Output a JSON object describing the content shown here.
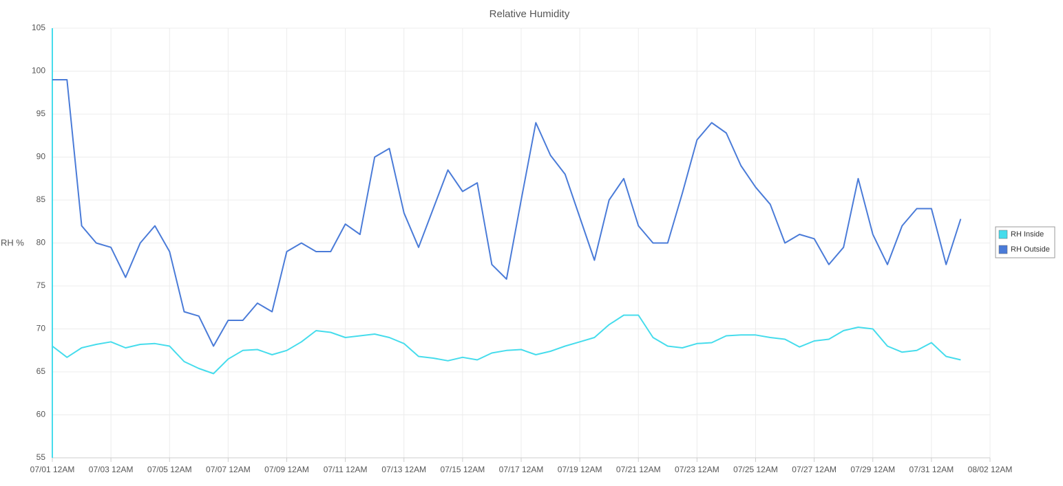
{
  "chart_data": {
    "type": "line",
    "title": "Relative Humidity",
    "y_label": "RH %",
    "x": [
      "07/01 12AM",
      "07/01 12PM",
      "07/02 12AM",
      "07/02 12PM",
      "07/03 12AM",
      "07/03 12PM",
      "07/04 12AM",
      "07/04 12PM",
      "07/05 12AM",
      "07/05 12PM",
      "07/06 12AM",
      "07/06 12PM",
      "07/07 12AM",
      "07/07 12PM",
      "07/08 12AM",
      "07/08 12PM",
      "07/09 12AM",
      "07/09 12PM",
      "07/10 12AM",
      "07/10 12PM",
      "07/11 12AM",
      "07/11 12PM",
      "07/12 12AM",
      "07/12 12PM",
      "07/13 12AM",
      "07/13 12PM",
      "07/14 12AM",
      "07/14 12PM",
      "07/15 12AM",
      "07/15 12PM",
      "07/16 12AM",
      "07/16 12PM",
      "07/17 12AM",
      "07/17 12PM",
      "07/18 12AM",
      "07/18 12PM",
      "07/19 12AM",
      "07/19 12PM",
      "07/20 12AM",
      "07/20 12PM",
      "07/21 12AM",
      "07/21 12PM",
      "07/22 12AM",
      "07/22 12PM",
      "07/23 12AM",
      "07/23 12PM",
      "07/24 12AM",
      "07/24 12PM",
      "07/25 12AM",
      "07/25 12PM",
      "07/26 12AM",
      "07/26 12PM",
      "07/27 12AM",
      "07/27 12PM",
      "07/28 12AM",
      "07/28 12PM",
      "07/29 12AM",
      "07/29 12PM",
      "07/30 12AM",
      "07/30 12PM",
      "07/31 12AM",
      "07/31 12PM",
      "08/01 12AM"
    ],
    "series": [
      {
        "name": "RH Inside",
        "color": "#45dcec",
        "values": [
          68,
          66.7,
          67.8,
          68.2,
          68.5,
          67.8,
          68.2,
          68.3,
          68,
          66.2,
          65.4,
          64.8,
          66.5,
          67.5,
          67.6,
          67,
          67.5,
          68.5,
          69.8,
          69.6,
          69,
          69.2,
          69.4,
          69,
          68.3,
          66.8,
          66.6,
          66.3,
          66.7,
          66.4,
          67.2,
          67.5,
          67.6,
          67,
          67.4,
          68,
          68.5,
          69,
          70.5,
          71.6,
          71.6,
          69,
          68,
          67.8,
          68.3,
          68.4,
          69.2,
          69.3,
          69.3,
          69,
          68.8,
          67.9,
          68.6,
          68.8,
          69.8,
          70.2,
          70,
          68,
          67.3,
          67.5,
          68.4,
          66.8,
          66.4
        ]
      },
      {
        "name": "RH Outside",
        "color": "#4a7bd8",
        "values": [
          99,
          99,
          82,
          80,
          79.5,
          76,
          80,
          82,
          79,
          72,
          71.5,
          68,
          71,
          71,
          73,
          72,
          79,
          80,
          79,
          79,
          82.2,
          81,
          90,
          91,
          83.5,
          79.5,
          84,
          88.5,
          86,
          87,
          77.5,
          75.8,
          85,
          94,
          90.2,
          88,
          83,
          78,
          85,
          87.5,
          82,
          80,
          80,
          85.8,
          92,
          94,
          92.8,
          89,
          86.5,
          84.5,
          80,
          81,
          80.5,
          77.5,
          79.5,
          87.5,
          81,
          77.5,
          82,
          84,
          84,
          77.5,
          82.8
        ]
      }
    ],
    "xlim": [
      "07/01 12AM",
      "08/02 12AM"
    ],
    "xticks": [
      "07/01 12AM",
      "07/03 12AM",
      "07/05 12AM",
      "07/07 12AM",
      "07/09 12AM",
      "07/11 12AM",
      "07/13 12AM",
      "07/15 12AM",
      "07/17 12AM",
      "07/19 12AM",
      "07/21 12AM",
      "07/23 12AM",
      "07/25 12AM",
      "07/27 12AM",
      "07/29 12AM",
      "07/31 12AM",
      "08/02 12AM"
    ],
    "ylim": [
      55,
      105
    ],
    "yticks": [
      55,
      60,
      65,
      70,
      75,
      80,
      85,
      90,
      95,
      100,
      105
    ],
    "grid": true,
    "legend": "right"
  }
}
